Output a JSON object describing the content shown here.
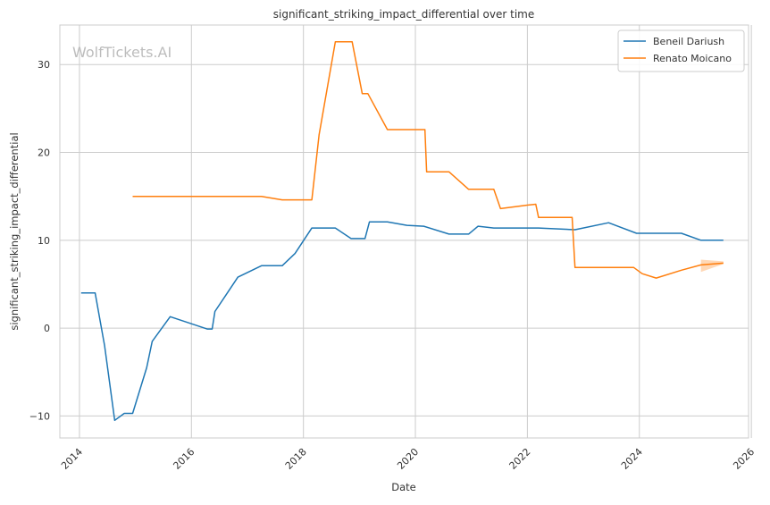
{
  "chart_data": {
    "type": "line",
    "title": "significant_striking_impact_differential over time",
    "xlabel": "Date",
    "ylabel": "significant_striking_impact_differential",
    "watermark": "WolfTickets.AI",
    "xlim": [
      2013.65,
      2025.95
    ],
    "ylim": [
      -12.5,
      34.5
    ],
    "xticks": [
      2014,
      2016,
      2018,
      2020,
      2022,
      2024,
      2026
    ],
    "yticks": [
      -10,
      0,
      10,
      20,
      30
    ],
    "grid": true,
    "legend_position": "top-right",
    "series": [
      {
        "name": "Beneil Dariush",
        "color": "#1f77b4",
        "points": [
          [
            2014.03,
            4.0
          ],
          [
            2014.28,
            4.0
          ],
          [
            2014.45,
            -2.0
          ],
          [
            2014.63,
            -10.5
          ],
          [
            2014.8,
            -9.7
          ],
          [
            2014.95,
            -9.7
          ],
          [
            2015.2,
            -4.5
          ],
          [
            2015.3,
            -1.5
          ],
          [
            2015.62,
            1.3
          ],
          [
            2016.28,
            -0.1
          ],
          [
            2016.37,
            -0.1
          ],
          [
            2016.42,
            1.9
          ],
          [
            2016.83,
            5.8
          ],
          [
            2017.25,
            7.1
          ],
          [
            2017.62,
            7.1
          ],
          [
            2017.85,
            8.5
          ],
          [
            2018.15,
            11.4
          ],
          [
            2018.57,
            11.4
          ],
          [
            2018.85,
            10.2
          ],
          [
            2019.1,
            10.2
          ],
          [
            2019.18,
            12.1
          ],
          [
            2019.5,
            12.1
          ],
          [
            2019.85,
            11.7
          ],
          [
            2020.15,
            11.6
          ],
          [
            2020.6,
            10.7
          ],
          [
            2020.95,
            10.7
          ],
          [
            2021.12,
            11.6
          ],
          [
            2021.4,
            11.4
          ],
          [
            2022.2,
            11.4
          ],
          [
            2022.85,
            11.2
          ],
          [
            2023.45,
            12.0
          ],
          [
            2023.95,
            10.8
          ],
          [
            2024.75,
            10.8
          ],
          [
            2025.1,
            10.0
          ],
          [
            2025.5,
            10.0
          ]
        ]
      },
      {
        "name": "Renato Moicano",
        "color": "#ff7f0e",
        "points": [
          [
            2014.95,
            15.0
          ],
          [
            2017.25,
            15.0
          ],
          [
            2017.62,
            14.6
          ],
          [
            2018.15,
            14.6
          ],
          [
            2018.28,
            22.0
          ],
          [
            2018.57,
            32.6
          ],
          [
            2018.87,
            32.6
          ],
          [
            2019.05,
            26.7
          ],
          [
            2019.15,
            26.7
          ],
          [
            2019.5,
            22.6
          ],
          [
            2020.17,
            22.6
          ],
          [
            2020.2,
            17.8
          ],
          [
            2020.6,
            17.8
          ],
          [
            2020.95,
            15.8
          ],
          [
            2021.4,
            15.8
          ],
          [
            2021.52,
            13.6
          ],
          [
            2022.0,
            14.0
          ],
          [
            2022.15,
            14.1
          ],
          [
            2022.2,
            12.6
          ],
          [
            2022.8,
            12.6
          ],
          [
            2022.85,
            6.9
          ],
          [
            2023.9,
            6.9
          ],
          [
            2024.05,
            6.2
          ],
          [
            2024.3,
            5.7
          ],
          [
            2024.75,
            6.6
          ],
          [
            2025.1,
            7.2
          ],
          [
            2025.5,
            7.4
          ]
        ]
      }
    ]
  }
}
